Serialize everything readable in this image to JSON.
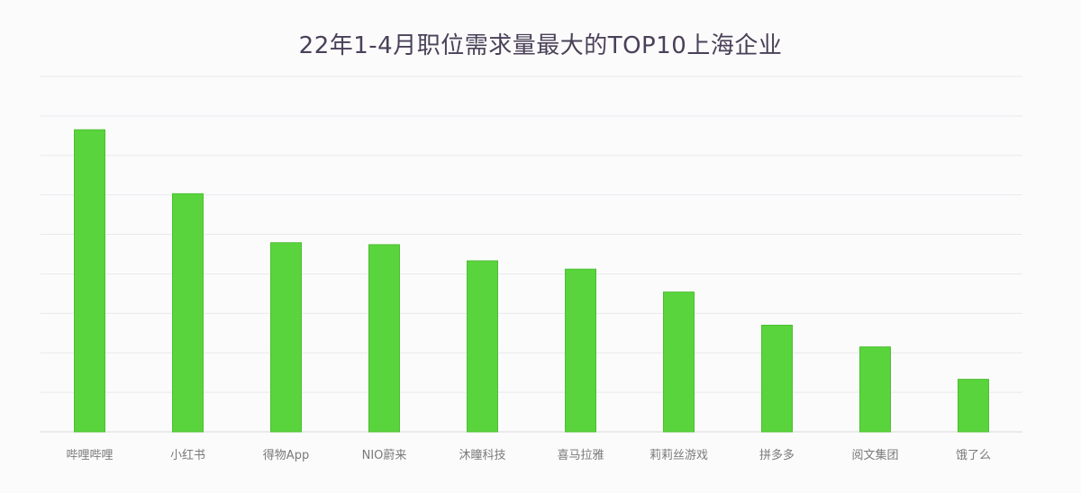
{
  "chart_data": {
    "type": "bar",
    "title": "22年1-4月职位需求量最大的TOP10上海企业",
    "xlabel": "",
    "ylabel": "",
    "categories": [
      "哔哩哔哩",
      "小红书",
      "得物App",
      "NIO蔚来",
      "沐瞳科技",
      "喜马拉雅",
      "莉莉丝游戏",
      "拼多多",
      "阅文集团",
      "饿了么"
    ],
    "values": [
      7.65,
      6.03,
      4.79,
      4.74,
      4.33,
      4.12,
      3.54,
      2.7,
      2.15,
      1.33
    ],
    "ylim": [
      0,
      9
    ],
    "grid": true,
    "color": "#5ad43c"
  }
}
